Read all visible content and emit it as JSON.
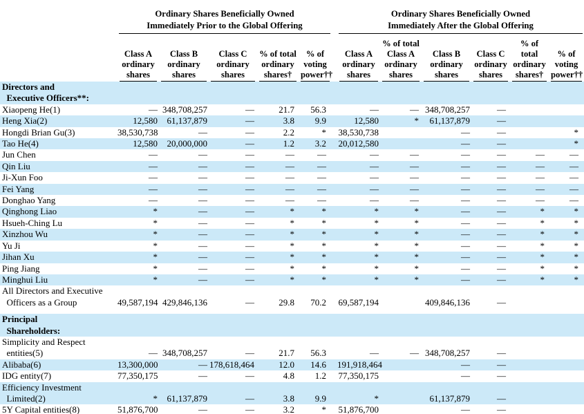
{
  "colors": {
    "row_highlight": "#cce9f8",
    "text": "#000000",
    "rule": "#000000"
  },
  "header": {
    "groups": {
      "prior": {
        "title": "Ordinary Shares Beneficially Owned\nImmediately Prior to the Global Offering"
      },
      "after": {
        "title": "Ordinary Shares Beneficially Owned\nImmediately After the Global Offering"
      }
    },
    "columns": [
      {
        "id": "prior-class-a",
        "label": "Class A\nordinary\nshares"
      },
      {
        "id": "prior-class-b",
        "label": "Class B\nordinary\nshares"
      },
      {
        "id": "prior-class-c",
        "label": "Class C\nordinary\nshares"
      },
      {
        "id": "prior-pct-total",
        "label": "% of total\nordinary\nshares†"
      },
      {
        "id": "prior-pct-voting",
        "label": "% of\nvoting\npower††"
      },
      {
        "id": "after-class-a",
        "label": "Class A\nordinary\nshares"
      },
      {
        "id": "after-pct-class-a",
        "label": "% of total\nClass A\nordinary\nshares"
      },
      {
        "id": "after-class-b",
        "label": "Class B\nordinary\nshares"
      },
      {
        "id": "after-class-c",
        "label": "Class C\nordinary\nshares"
      },
      {
        "id": "after-pct-total",
        "label": "% of\ntotal\nordinary\nshares†"
      },
      {
        "id": "after-pct-voting",
        "label": "% of\nvoting\npower††"
      }
    ]
  },
  "rows": [
    {
      "kind": "section",
      "shaded": true,
      "label": "Directors and\n  Executive Officers**:"
    },
    {
      "kind": "data",
      "shaded": false,
      "label": "Xiaopeng He(1)",
      "cells": [
        "—",
        "348,708,257",
        "—",
        "21.7",
        "56.3",
        "—",
        "—",
        "348,708,257",
        "—",
        "",
        ""
      ]
    },
    {
      "kind": "data",
      "shaded": true,
      "label": "Heng Xia(2)",
      "cells": [
        "12,580",
        "61,137,879",
        "—",
        "3.8",
        "9.9",
        "12,580",
        "*",
        "61,137,879",
        "—",
        "",
        ""
      ]
    },
    {
      "kind": "data",
      "shaded": false,
      "label": "Hongdi Brian Gu(3)",
      "cells": [
        "38,530,738",
        "—",
        "—",
        "2.2",
        "*",
        "38,530,738",
        "",
        "—",
        "—",
        "",
        "*"
      ]
    },
    {
      "kind": "data",
      "shaded": true,
      "label": "Tao He(4)",
      "cells": [
        "12,580",
        "20,000,000",
        "—",
        "1.2",
        "3.2",
        "20,012,580",
        "",
        "—",
        "—",
        "",
        "*"
      ]
    },
    {
      "kind": "data",
      "shaded": false,
      "label": "Jun Chen",
      "cells": [
        "—",
        "—",
        "—",
        "—",
        "—",
        "—",
        "—",
        "—",
        "—",
        "—",
        "—"
      ]
    },
    {
      "kind": "data",
      "shaded": true,
      "label": "Qin Liu",
      "cells": [
        "—",
        "—",
        "—",
        "—",
        "—",
        "—",
        "—",
        "—",
        "—",
        "—",
        "—"
      ]
    },
    {
      "kind": "data",
      "shaded": false,
      "label": "Ji-Xun Foo",
      "cells": [
        "—",
        "—",
        "—",
        "—",
        "—",
        "—",
        "—",
        "—",
        "—",
        "—",
        "—"
      ]
    },
    {
      "kind": "data",
      "shaded": true,
      "label": "Fei Yang",
      "cells": [
        "—",
        "—",
        "—",
        "—",
        "—",
        "—",
        "—",
        "—",
        "—",
        "—",
        "—"
      ]
    },
    {
      "kind": "data",
      "shaded": false,
      "label": "Donghao Yang",
      "cells": [
        "—",
        "—",
        "—",
        "—",
        "—",
        "—",
        "—",
        "—",
        "—",
        "—",
        "—"
      ]
    },
    {
      "kind": "data",
      "shaded": true,
      "label": "Qinghong Liao",
      "cells": [
        "*",
        "—",
        "—",
        "*",
        "*",
        "*",
        "*",
        "—",
        "—",
        "*",
        "*"
      ]
    },
    {
      "kind": "data",
      "shaded": false,
      "label": "Hsueh-Ching Lu",
      "cells": [
        "*",
        "—",
        "—",
        "*",
        "*",
        "*",
        "*",
        "—",
        "—",
        "*",
        "*"
      ]
    },
    {
      "kind": "data",
      "shaded": true,
      "label": "Xinzhou Wu",
      "cells": [
        "*",
        "—",
        "—",
        "*",
        "*",
        "*",
        "*",
        "—",
        "—",
        "*",
        "*"
      ]
    },
    {
      "kind": "data",
      "shaded": false,
      "label": "Yu Ji",
      "cells": [
        "*",
        "—",
        "—",
        "*",
        "*",
        "*",
        "*",
        "—",
        "—",
        "*",
        "*"
      ]
    },
    {
      "kind": "data",
      "shaded": true,
      "label": "Jihan Xu",
      "cells": [
        "*",
        "—",
        "—",
        "*",
        "*",
        "*",
        "*",
        "—",
        "—",
        "*",
        "*"
      ]
    },
    {
      "kind": "data",
      "shaded": false,
      "label": "Ping Jiang",
      "cells": [
        "*",
        "—",
        "—",
        "*",
        "*",
        "*",
        "*",
        "—",
        "—",
        "*",
        "*"
      ]
    },
    {
      "kind": "data",
      "shaded": true,
      "label": "Minghui Liu",
      "cells": [
        "*",
        "—",
        "—",
        "*",
        "*",
        "*",
        "*",
        "—",
        "—",
        "*",
        "*"
      ]
    },
    {
      "kind": "data",
      "shaded": false,
      "label": "All Directors and Executive\n  Officers as a Group",
      "cells": [
        "49,587,194",
        "429,846,136",
        "—",
        "29.8",
        "70.2",
        "69,587,194",
        "",
        "409,846,136",
        "—",
        "",
        ""
      ]
    },
    {
      "kind": "gap"
    },
    {
      "kind": "section",
      "shaded": true,
      "label": "Principal\n  Shareholders:"
    },
    {
      "kind": "data",
      "shaded": false,
      "label": "Simplicity and Respect\n  entities(5)",
      "cells": [
        "—",
        "348,708,257",
        "—",
        "21.7",
        "56.3",
        "—",
        "—",
        "348,708,257",
        "—",
        "",
        ""
      ]
    },
    {
      "kind": "data",
      "shaded": true,
      "label": "Alibaba(6)",
      "cells": [
        "13,300,000",
        "—",
        "178,618,464",
        "12.0",
        "14.6",
        "191,918,464",
        "",
        "—",
        "—",
        "",
        ""
      ]
    },
    {
      "kind": "data",
      "shaded": false,
      "label": "IDG entity(7)",
      "cells": [
        "77,350,175",
        "—",
        "—",
        "4.8",
        "1.2",
        "77,350,175",
        "",
        "—",
        "—",
        "",
        ""
      ]
    },
    {
      "kind": "data",
      "shaded": true,
      "label": "Efficiency Investment\n  Limited(2)",
      "cells": [
        "*",
        "61,137,879",
        "—",
        "3.8",
        "9.9",
        "*",
        "",
        "61,137,879",
        "—",
        "",
        ""
      ]
    },
    {
      "kind": "data",
      "shaded": false,
      "label": "5Y Capital entities(8)",
      "cells": [
        "51,876,700",
        "—",
        "—",
        "3.2",
        "*",
        "51,876,700",
        "",
        "—",
        "—",
        "",
        ""
      ]
    }
  ]
}
